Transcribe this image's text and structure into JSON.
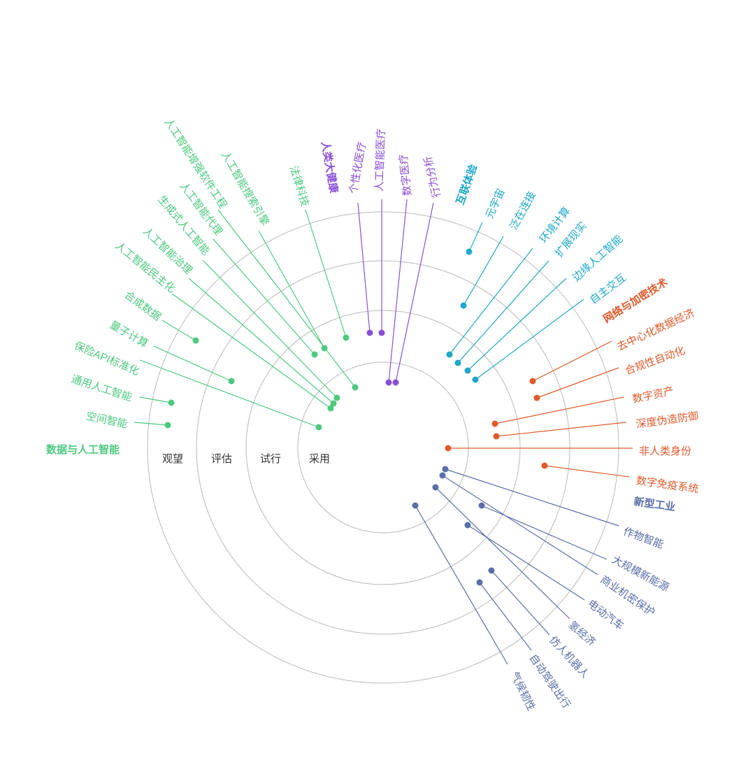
{
  "rings": [
    "采用",
    "试行",
    "评估",
    "观望"
  ],
  "categories": [
    {
      "id": "data-ai",
      "name": "数据与人工智能",
      "color": "#4cc97f",
      "items": [
        "空间智能",
        "通用人工智能",
        "保险API标准化",
        "量子计算",
        "合成数据",
        "人工智能民主化",
        "人工智能治理",
        "生成式人工智能",
        "人工智能代理",
        "人工智能增强软件工程",
        "人工智能搜索引擎",
        "法律科技"
      ]
    },
    {
      "id": "human-health",
      "name": "人类大健康",
      "color": "#8a4fd6",
      "items": [
        "个性化医疗",
        "人工智能医疗",
        "数字医疗",
        "行为分析"
      ]
    },
    {
      "id": "interconnected-experience",
      "name": "互联体验",
      "color": "#1fa8c9",
      "items": [
        "元宇宙",
        "泛在连接",
        "环境计算",
        "扩展现实",
        "边缘人工智能",
        "自主交互"
      ]
    },
    {
      "id": "network-crypto",
      "name": "网络与加密技术",
      "color": "#e05a2b",
      "items": [
        "去中心化数据经济",
        "合规性自动化",
        "数字资产",
        "深度伪造防御",
        "非人类身份",
        "数字免疫系统"
      ]
    },
    {
      "id": "new-industry",
      "name": "新型工业",
      "color": "#5a6ea8",
      "items": [
        "作物智能",
        "大规模新能源",
        "商业机密保护",
        "电动汽车",
        "氢经济",
        "仿人机器人",
        "自动驾驶出行",
        "气候韧性"
      ]
    }
  ]
}
